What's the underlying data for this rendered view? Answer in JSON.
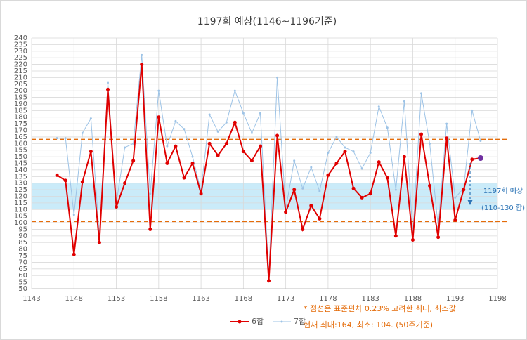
{
  "chart_data": {
    "type": "line",
    "title": "1197회 예상(1146~1196기준)",
    "x": [
      1146,
      1147,
      1148,
      1149,
      1150,
      1151,
      1152,
      1153,
      1154,
      1155,
      1156,
      1157,
      1158,
      1159,
      1160,
      1161,
      1162,
      1163,
      1164,
      1165,
      1166,
      1167,
      1168,
      1169,
      1170,
      1171,
      1172,
      1173,
      1174,
      1175,
      1176,
      1177,
      1178,
      1179,
      1180,
      1181,
      1182,
      1183,
      1184,
      1185,
      1186,
      1187,
      1188,
      1189,
      1190,
      1191,
      1192,
      1193,
      1194,
      1195,
      1196
    ],
    "series": [
      {
        "name": "6합",
        "color": "#e00000",
        "last_point_color": "#7030a0",
        "values": [
          136,
          132,
          76,
          131,
          154,
          85,
          201,
          112,
          130,
          147,
          220,
          95,
          180,
          145,
          158,
          134,
          145,
          122,
          160,
          151,
          160,
          176,
          154,
          147,
          158,
          56,
          166,
          108,
          125,
          95,
          113,
          103,
          136,
          145,
          154,
          126,
          119,
          122,
          146,
          134,
          90,
          150,
          87,
          167,
          128,
          89,
          164,
          102,
          125,
          148,
          149
        ]
      },
      {
        "name": "7합",
        "color": "#9dc3e6",
        "values": [
          164,
          164,
          106,
          168,
          179,
          90,
          206,
          115,
          157,
          160,
          227,
          122,
          200,
          158,
          177,
          171,
          150,
          124,
          182,
          169,
          176,
          200,
          183,
          168,
          183,
          60,
          210,
          110,
          147,
          126,
          142,
          124,
          153,
          165,
          157,
          154,
          141,
          153,
          188,
          172,
          125,
          192,
          92,
          198,
          160,
          97,
          175,
          119,
          126,
          185,
          162
        ]
      }
    ],
    "xlim": [
      1143,
      1198
    ],
    "xticks": [
      1143,
      1148,
      1153,
      1158,
      1163,
      1168,
      1173,
      1178,
      1183,
      1188,
      1193,
      1198
    ],
    "ylim": [
      50,
      240
    ],
    "yticks": [
      50,
      55,
      60,
      65,
      70,
      75,
      80,
      85,
      90,
      95,
      100,
      105,
      110,
      115,
      120,
      125,
      130,
      135,
      140,
      145,
      150,
      155,
      160,
      165,
      170,
      175,
      180,
      185,
      190,
      195,
      200,
      205,
      210,
      215,
      220,
      225,
      230,
      235,
      240
    ],
    "grid": true,
    "reference_lines": [
      163,
      101
    ],
    "reference_color": "#e46c0a",
    "band": [
      110,
      130
    ],
    "band_color": "#bde6f7",
    "annotations": [
      "1197회 예상",
      "(110-130 합)"
    ],
    "notes": [
      "* 점선은 표준편차 0.23% 고려한 최대, 최소값",
      "현재 최대:164, 최소: 104. (50주기준)"
    ]
  }
}
